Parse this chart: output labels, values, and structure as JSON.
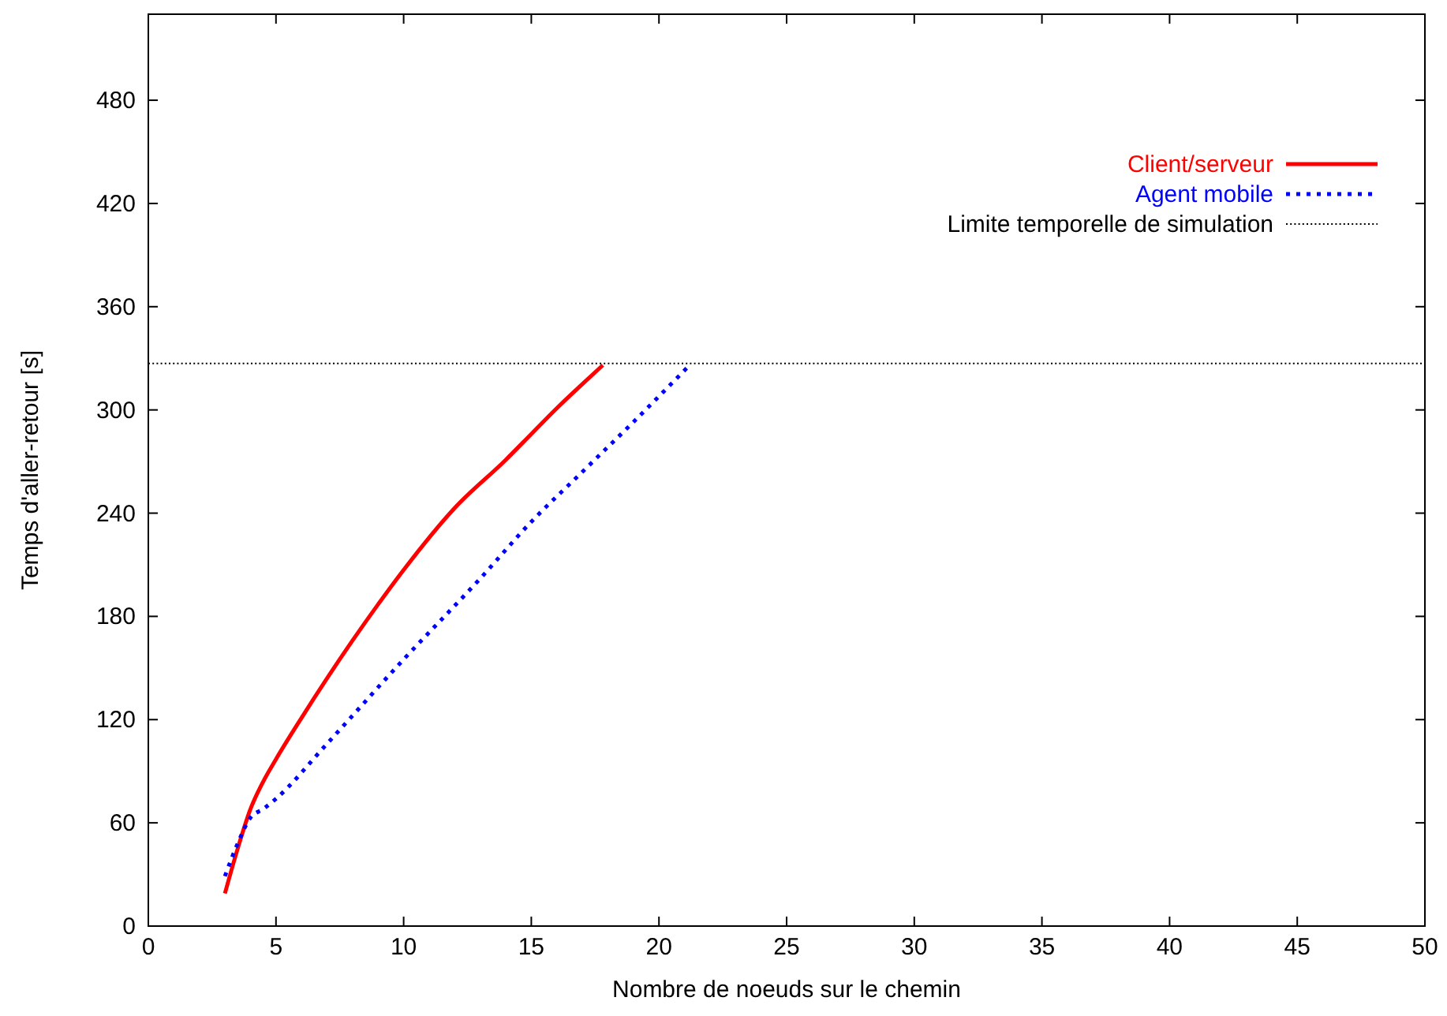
{
  "chart_data": {
    "type": "line",
    "xlabel": "Nombre de noeuds sur le chemin",
    "ylabel": "Temps d'aller-retour [s]",
    "xlim": [
      0,
      50
    ],
    "ylim": [
      0,
      530
    ],
    "xticks": [
      0,
      5,
      10,
      15,
      20,
      25,
      30,
      35,
      40,
      45,
      50
    ],
    "yticks": [
      0,
      60,
      120,
      180,
      240,
      300,
      360,
      420,
      480
    ],
    "grid": false,
    "legend": "top right",
    "series": [
      {
        "name": "Client/serveur",
        "color": "#ff0000",
        "line_style": "solid",
        "x": [
          3,
          3.5,
          4,
          4.5,
          5,
          6,
          7,
          8,
          9,
          10,
          12,
          14,
          15,
          16,
          17,
          17.8
        ],
        "values": [
          19,
          45,
          68,
          84,
          97,
          121,
          144,
          166,
          187,
          207,
          243,
          271,
          286,
          301,
          315,
          326
        ]
      },
      {
        "name": "Agent mobile",
        "color": "#0000ff",
        "line_style": "dotted",
        "x": [
          3,
          3.5,
          4,
          4.5,
          5,
          7,
          10,
          13,
          15,
          17,
          19,
          21.2
        ],
        "values": [
          29,
          48,
          63,
          68,
          74,
          106,
          155,
          202,
          235,
          264,
          293,
          326
        ]
      }
    ],
    "ref_lines": [
      {
        "axis": "y",
        "value": 327,
        "label": "Limite temporelle de simulation",
        "color": "#000000",
        "line_style": "dotted"
      }
    ]
  }
}
